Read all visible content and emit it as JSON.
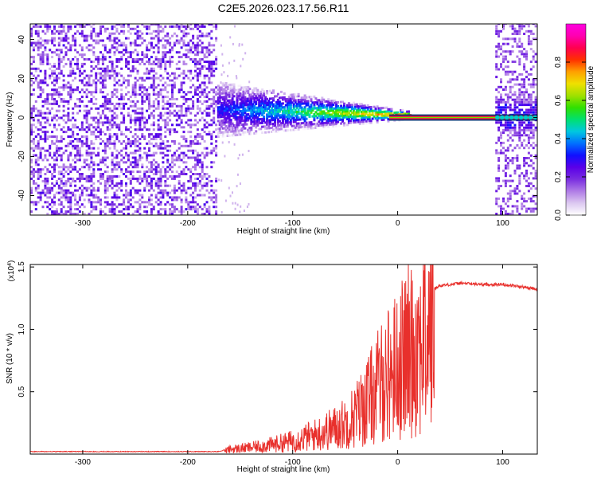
{
  "title": "C2E5.2026.023.17.56.R11",
  "chart_data": [
    {
      "type": "heatmap",
      "xlabel": "Height of straight line (km)",
      "ylabel": "Frequency (Hz)",
      "xlim": [
        -350,
        133
      ],
      "ylim": [
        -50,
        48
      ],
      "x_ticks": [
        -300,
        -200,
        -100,
        0,
        100
      ],
      "y_ticks": [
        -40,
        -20,
        0,
        20,
        40
      ],
      "colorbar": {
        "label": "Normalized spectral amplitude",
        "range": [
          0,
          1
        ],
        "ticks": [
          "0.0",
          "0.2",
          "0.4",
          "0.6",
          "0.8"
        ],
        "colors": [
          "#ffffff",
          "#dcc8f0",
          "#b07ce6",
          "#7a2ee0",
          "#5a00e8",
          "#1010ff",
          "#0070ff",
          "#00c8e0",
          "#00e070",
          "#30e000",
          "#a0e000",
          "#f0e000",
          "#ffa000",
          "#ff3000",
          "#ff0050",
          "#ff00b0",
          "#ff00e0"
        ]
      },
      "regions": [
        {
          "x": [
            -350,
            -172
          ],
          "description": "broadband noise"
        },
        {
          "x": [
            -172,
            12
          ],
          "description": "signal ridge near 0 Hz"
        },
        {
          "x": [
            12,
            93
          ],
          "description": "narrow line at 0 Hz"
        },
        {
          "x": [
            93,
            133
          ],
          "description": "broadband noise with line"
        }
      ]
    },
    {
      "type": "line",
      "xlabel": "Height of straight line (km)",
      "ylabel": "SNR (10 * v/v)",
      "y_multiplier": "(x10",
      "y_multiplier_exp": "4",
      "multiplier_close": ")",
      "xlim": [
        -350,
        133
      ],
      "ylim": [
        0,
        1.52
      ],
      "x_ticks": [
        -300,
        -200,
        -100,
        0,
        100
      ],
      "y_ticks": [
        "0.5",
        "1.0",
        "1.5"
      ],
      "series": [
        {
          "color": "#e8302c",
          "x": [
            -350,
            -300,
            -250,
            -200,
            -170,
            -160,
            -140,
            -120,
            -100,
            -80,
            -60,
            -50,
            -40,
            -30,
            -20,
            -10,
            0,
            10,
            20,
            30,
            40,
            60,
            80,
            100,
            120,
            133
          ],
          "y": [
            0.02,
            0.02,
            0.02,
            0.02,
            0.02,
            0.05,
            0.07,
            0.1,
            0.14,
            0.2,
            0.28,
            0.33,
            0.42,
            0.55,
            0.7,
            0.85,
            0.95,
            1.1,
            1.2,
            1.3,
            1.35,
            1.37,
            1.36,
            1.36,
            1.34,
            1.32
          ]
        }
      ]
    }
  ]
}
